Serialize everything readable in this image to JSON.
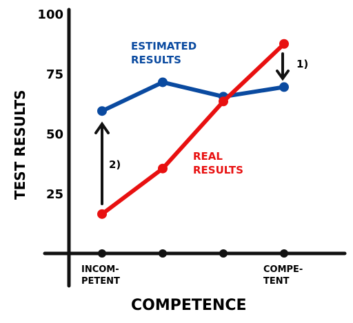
{
  "chart_data": {
    "type": "line",
    "y_label": "TEST RESULTS",
    "x_label": "COMPETENCE",
    "categories": [
      "INCOM-\nPETENT",
      null,
      null,
      "COMPE-\nTENT"
    ],
    "series": [
      {
        "name": "ESTIMATED\nRESULTS",
        "color": "#0a4aa0",
        "values": [
          60,
          72,
          66,
          70
        ]
      },
      {
        "name": "REAL\nRESULTS",
        "color": "#e81010",
        "values": [
          17,
          36,
          64,
          88
        ]
      }
    ],
    "annotations": [
      "1)",
      "2)"
    ],
    "ylim": [
      0,
      100
    ],
    "yticks": [
      25,
      50,
      75,
      100
    ],
    "grid": false
  }
}
